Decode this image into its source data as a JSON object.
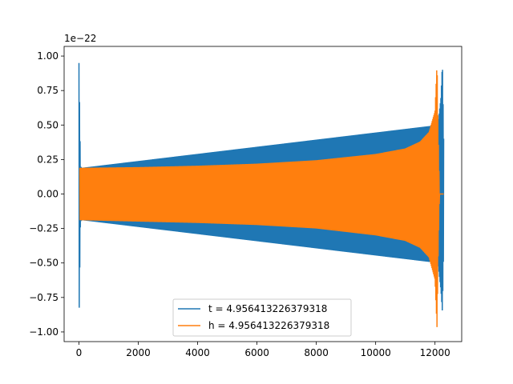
{
  "chart_data": {
    "type": "line",
    "title": "",
    "xlabel": "",
    "ylabel": "",
    "y_offset_label": "1e−22",
    "xlim": [
      -500,
      12900
    ],
    "ylim": [
      -1.07,
      1.07
    ],
    "x_ticks": [
      0,
      2000,
      4000,
      6000,
      8000,
      10000,
      12000
    ],
    "x_tick_labels": [
      "0",
      "2000",
      "4000",
      "6000",
      "8000",
      "10000",
      "12000"
    ],
    "y_ticks": [
      1.0,
      0.75,
      0.5,
      0.25,
      0.0,
      -0.25,
      -0.5,
      -0.75,
      -1.0
    ],
    "y_tick_labels": [
      "1.00",
      "0.75",
      "0.50",
      "0.25",
      "0.00",
      "−0.25",
      "−0.50",
      "−0.75",
      "−1.00"
    ],
    "grid": false,
    "legend_position": "lower-center",
    "series": [
      {
        "name": "t = 4.956413226379318",
        "color": "#1f77b4",
        "envelope": {
          "x": [
            0,
            50,
            100,
            12100,
            12150,
            12200,
            12250,
            12300
          ],
          "upper": [
            0.95,
            0.2,
            0.19,
            0.5,
            0.6,
            0.7,
            0.96,
            0.3
          ],
          "lower": [
            -0.97,
            -0.2,
            -0.19,
            -0.5,
            -0.6,
            -0.7,
            -0.86,
            -0.3
          ]
        }
      },
      {
        "name": "h = 4.956413226379318",
        "color": "#ff7f0e",
        "envelope": {
          "x": [
            30,
            2000,
            4000,
            6000,
            8000,
            10000,
            11000,
            11500,
            11800,
            12000,
            12070,
            12100,
            12150,
            12300
          ],
          "upper": [
            0.19,
            0.195,
            0.205,
            0.22,
            0.245,
            0.29,
            0.33,
            0.38,
            0.45,
            0.6,
            0.96,
            0.5,
            0.0,
            0.0
          ],
          "lower": [
            -0.19,
            -0.2,
            -0.21,
            -0.225,
            -0.25,
            -0.3,
            -0.34,
            -0.39,
            -0.46,
            -0.62,
            -0.98,
            -0.5,
            0.0,
            0.0
          ]
        }
      }
    ]
  }
}
